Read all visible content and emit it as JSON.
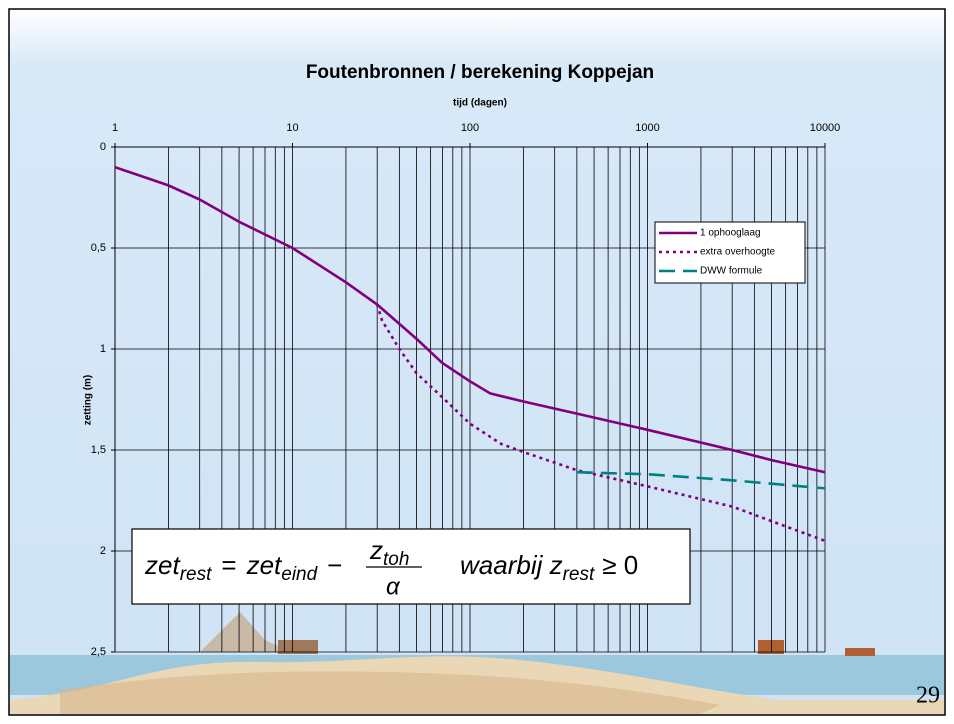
{
  "chart_data": {
    "type": "line",
    "title": "Foutenbronnen / berekening Koppejan",
    "x_label": "tijd (dagen)",
    "y_label": "zetting (m)",
    "xlim": [
      1,
      10000
    ],
    "xticks": [
      1,
      10,
      100,
      1000,
      10000
    ],
    "x_log": true,
    "x_axis_position": "top",
    "minor_grid": true,
    "ylim": [
      0,
      2.5
    ],
    "y_reversed": true,
    "yticks": [
      0,
      {
        "value": 0.5,
        "label": "0,5"
      },
      1,
      {
        "value": 1.5,
        "label": "1,5"
      },
      2,
      {
        "value": 2.5,
        "label": "2,5"
      }
    ],
    "grid": true,
    "legend": "upper right",
    "series": [
      {
        "name": "1 ophooglaag",
        "color": "#800080",
        "dash": "solid",
        "x": [
          1,
          2,
          3,
          5,
          10,
          20,
          30,
          50,
          70,
          100,
          130,
          200,
          400,
          1000,
          3000,
          5000,
          10000
        ],
        "values": [
          0.1,
          0.19,
          0.26,
          0.37,
          0.5,
          0.67,
          0.78,
          0.95,
          1.07,
          1.16,
          1.22,
          1.26,
          1.32,
          1.4,
          1.5,
          1.55,
          1.61
        ]
      },
      {
        "name": "extra overhoogte",
        "color": "#800080",
        "dash": "dotted",
        "x": [
          30,
          32,
          40,
          50,
          70,
          100,
          150,
          200,
          400,
          1000,
          3000,
          10000
        ],
        "values": [
          0.78,
          0.86,
          1.0,
          1.12,
          1.24,
          1.37,
          1.47,
          1.51,
          1.6,
          1.68,
          1.78,
          1.95
        ]
      },
      {
        "name": "DWW formule",
        "color": "#008080",
        "dash": "dashed",
        "x": [
          400,
          1000,
          3000,
          10000
        ],
        "values": [
          1.61,
          1.62,
          1.65,
          1.69
        ]
      }
    ]
  },
  "formula": {
    "parts": [
      "zet",
      "rest",
      "=",
      "zet",
      "eind",
      "−",
      "z",
      "toh",
      "α",
      "waarbij z",
      "rest",
      "≥ 0"
    ]
  },
  "slide_number": "29"
}
